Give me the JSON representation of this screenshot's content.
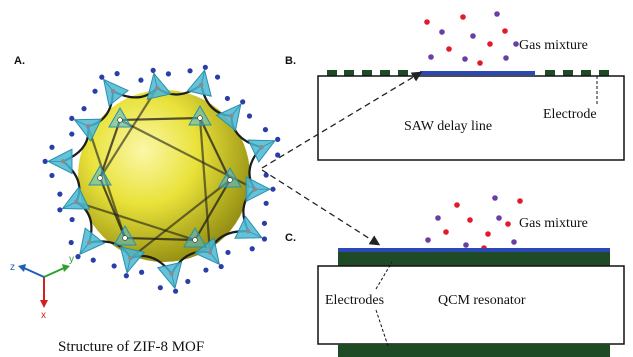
{
  "panel_labels": {
    "a": "A.",
    "b": "B.",
    "c": "C."
  },
  "mof": {
    "caption": "Structure of ZIF-8 MOF",
    "axes": {
      "z": "z",
      "y": "y",
      "x": "x"
    }
  },
  "saw": {
    "gas_label": "Gas mixture",
    "device_label": "SAW delay line",
    "electrode_label": "Electrode"
  },
  "qcm": {
    "gas_label": "Gas mixture",
    "device_label": "QCM resonator",
    "electrodes_label": "Electrodes"
  },
  "colors": {
    "sphere": "#e8e23a",
    "tetrahedra": "#49b8d4",
    "framework": "#1d1d1d",
    "nitrogen": "#2a3ea8",
    "electrode_green": "#1e4a26",
    "film_blue": "#2b48b8",
    "molecule_purple": "#6a3ea5",
    "molecule_red": "#e11b2b",
    "axis_z": "#1f5fb8",
    "axis_y": "#2ea12e",
    "axis_x": "#d61f1f"
  }
}
